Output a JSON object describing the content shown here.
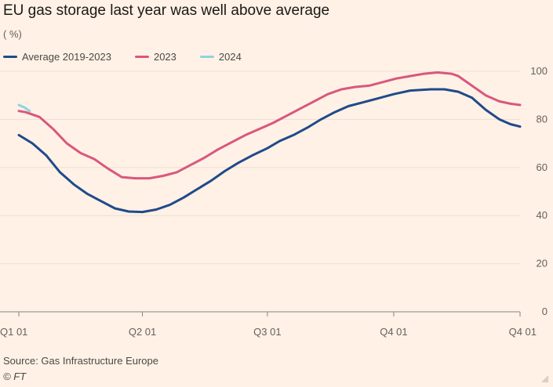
{
  "chart_data": {
    "type": "line",
    "title": "EU gas storage last year was well above average",
    "unit_label": "( %)",
    "xlabel": "",
    "ylabel": "%",
    "ylim": [
      0,
      100
    ],
    "xlim": [
      0,
      365
    ],
    "yticks": [
      0,
      20,
      40,
      60,
      80,
      100
    ],
    "xticks": [
      {
        "day": 0,
        "label": "Q1 01"
      },
      {
        "day": 90,
        "label": "Q2 01"
      },
      {
        "day": 181,
        "label": "Q3 01"
      },
      {
        "day": 273,
        "label": "Q4 01"
      },
      {
        "day": 365,
        "label": "Q4 01"
      }
    ],
    "grid": true,
    "legend_position": "top-left",
    "series": [
      {
        "name": "Average 2019-2023",
        "color": "#1f4a8a",
        "x": [
          0,
          10,
          20,
          30,
          40,
          50,
          60,
          70,
          80,
          90,
          100,
          110,
          120,
          130,
          140,
          150,
          160,
          170,
          181,
          190,
          200,
          210,
          220,
          230,
          240,
          250,
          260,
          273,
          285,
          300,
          310,
          320,
          330,
          340,
          350,
          358,
          365
        ],
        "y": [
          73.5,
          70,
          65,
          58,
          53,
          49,
          46,
          43,
          41.7,
          41.5,
          42.5,
          44.5,
          47.5,
          51,
          54.5,
          58.5,
          62,
          65,
          68,
          71,
          73.5,
          76.5,
          80,
          83,
          85.5,
          87,
          88.5,
          90.5,
          92,
          92.5,
          92.5,
          91.5,
          89,
          84,
          80,
          78,
          77
        ]
      },
      {
        "name": "2023",
        "color": "#d9577e",
        "x": [
          0,
          5,
          15,
          25,
          35,
          45,
          55,
          65,
          75,
          85,
          95,
          105,
          115,
          125,
          135,
          145,
          155,
          165,
          175,
          185,
          195,
          205,
          215,
          225,
          235,
          245,
          255,
          265,
          275,
          285,
          295,
          305,
          315,
          320,
          330,
          340,
          350,
          358,
          365
        ],
        "y": [
          83.5,
          83,
          81,
          76,
          70,
          66,
          63.5,
          59.5,
          56,
          55.5,
          55.5,
          56.5,
          58,
          61,
          64,
          67.5,
          70.5,
          73.5,
          76,
          78.5,
          81.5,
          84.5,
          87.5,
          90.5,
          92.5,
          93.5,
          94,
          95.5,
          97,
          98,
          99,
          99.5,
          99,
          98,
          94,
          90,
          87.5,
          86.5,
          86
        ]
      },
      {
        "name": "2024",
        "color": "#8fd3df",
        "x": [
          0,
          4,
          8
        ],
        "y": [
          86,
          85,
          83.5
        ]
      }
    ]
  },
  "footer": {
    "source": "Source: Gas Infrastructure Europe",
    "credit": "© FT"
  }
}
